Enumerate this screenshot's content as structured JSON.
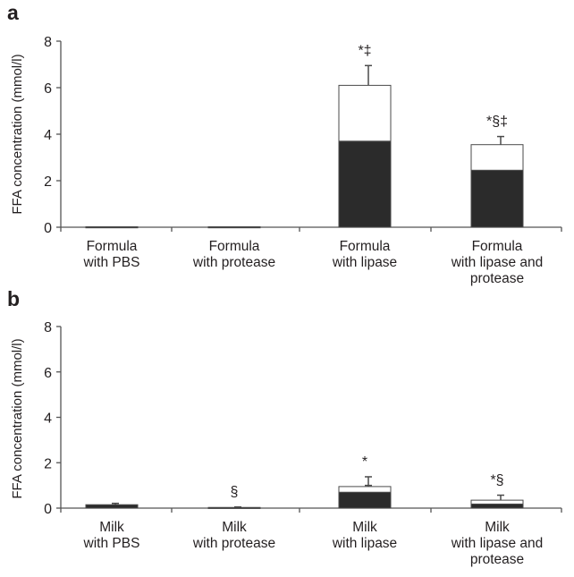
{
  "chart_data": [
    {
      "panel": "a",
      "type": "bar",
      "stacked": true,
      "ylabel": "FFA concentration (mmol/l)",
      "ylim": [
        0,
        8
      ],
      "yticks": [
        "0",
        "2",
        "4",
        "6",
        "8"
      ],
      "categories": [
        [
          "Formula",
          "with PBS"
        ],
        [
          "Formula",
          "with protease"
        ],
        [
          "Formula",
          "with lipase"
        ],
        [
          "Formula",
          "with lipase and",
          "protease"
        ]
      ],
      "series": [
        {
          "fill": "#2b2b2b",
          "values": [
            0.02,
            0.02,
            3.7,
            2.45
          ],
          "error": [
            0,
            0,
            0.15,
            0.45
          ]
        },
        {
          "fill": "#ffffff",
          "values": [
            0,
            0,
            2.4,
            1.1
          ],
          "error": [
            0,
            0,
            0.85,
            0.35
          ]
        }
      ],
      "annotations": [
        "",
        "",
        "*‡",
        "*§‡"
      ]
    },
    {
      "panel": "b",
      "type": "bar",
      "stacked": true,
      "ylabel": "FFA concentration (mmol/l)",
      "ylim": [
        0,
        8
      ],
      "yticks": [
        "0",
        "2",
        "4",
        "6",
        "8"
      ],
      "categories": [
        [
          "Milk",
          "with PBS"
        ],
        [
          "Milk",
          "with protease"
        ],
        [
          "Milk",
          "with lipase"
        ],
        [
          "Milk",
          "with lipase and",
          "protease"
        ]
      ],
      "series": [
        {
          "fill": "#2b2b2b",
          "values": [
            0.15,
            0.03,
            0.7,
            0.18
          ],
          "error": [
            0.06,
            0.02,
            0.3,
            0.12
          ]
        },
        {
          "fill": "#ffffff",
          "values": [
            0,
            0,
            0.25,
            0.17
          ],
          "error": [
            0,
            0,
            0.43,
            0.22
          ]
        }
      ],
      "annotations": [
        "",
        "§",
        "*",
        "*§"
      ]
    }
  ],
  "colors": {
    "ink": "#231f20",
    "axis": "#555555"
  }
}
